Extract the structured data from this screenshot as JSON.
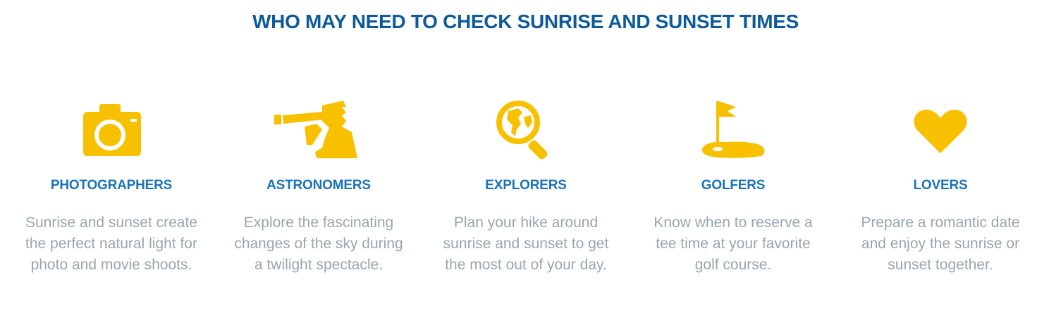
{
  "heading": "WHO MAY NEED TO CHECK SUNRISE AND SUNSET TIMES",
  "accent_color": "#f7c100",
  "cards": [
    {
      "icon": "camera-icon",
      "title": "PHOTOGRAPHERS",
      "description": "Sunrise and sunset create the perfect natural light for photo and movie shoots."
    },
    {
      "icon": "telescope-icon",
      "title": "ASTRONOMERS",
      "description": "Explore the fascinating changes of the sky during a twilight spectacle."
    },
    {
      "icon": "globe-magnifier-icon",
      "title": "EXPLORERS",
      "description": "Plan your hike around sunrise and sunset to get the most out of your day."
    },
    {
      "icon": "golf-flag-icon",
      "title": "GOLFERS",
      "description": "Know when to reserve a tee time at your favorite golf course."
    },
    {
      "icon": "heart-icon",
      "title": "LOVERS",
      "description": "Prepare a romantic date and enjoy the sunrise or sunset together."
    }
  ]
}
